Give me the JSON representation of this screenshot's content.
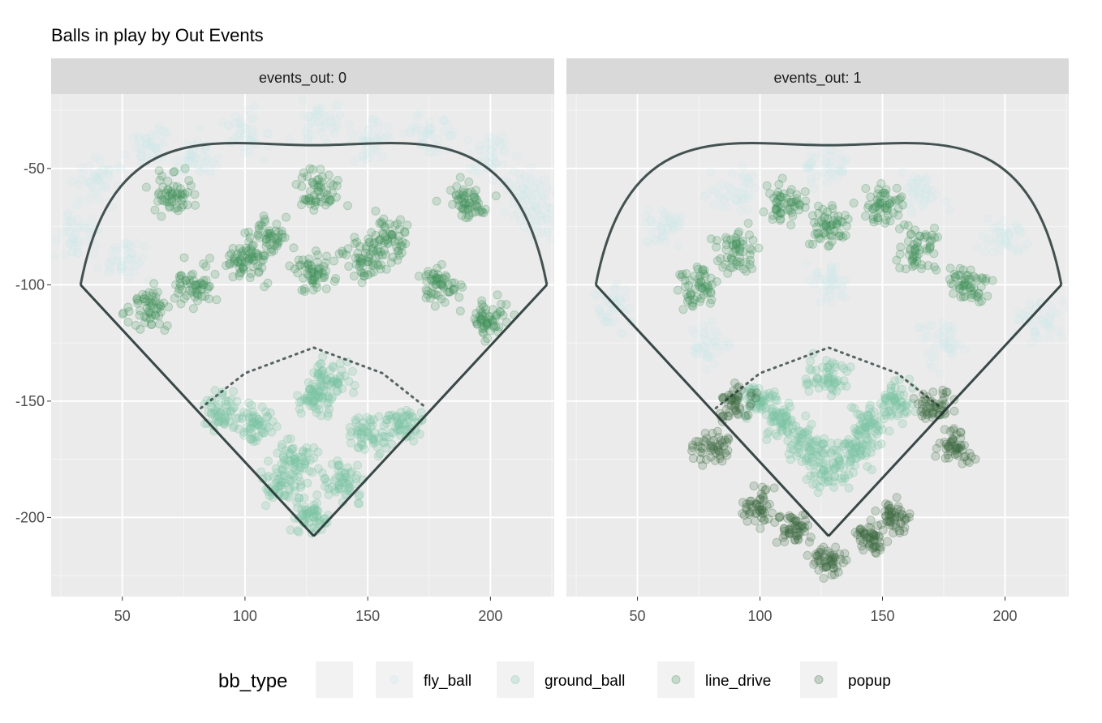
{
  "chart_data": {
    "type": "scatter",
    "title": "Balls in play by Out Events",
    "xlabel": "",
    "ylabel": "",
    "xlim": [
      21,
      226
    ],
    "ylim": [
      -234,
      -18
    ],
    "x_ticks": [
      50,
      100,
      150,
      200
    ],
    "y_ticks": [
      -50,
      -100,
      -150,
      -200
    ],
    "grid": true,
    "legend": {
      "title": "bb_type",
      "placement": "bottom",
      "entries": [
        "",
        "fly_ball",
        "ground_ball",
        "line_drive",
        "popup"
      ]
    },
    "colors": {
      "blank": "#d9d9d9",
      "fly_ball": "#cbe8ed",
      "ground_ball": "#7cc4a4",
      "line_drive": "#3f9259",
      "popup": "#3d6b3f",
      "field_line": "#1a2a2a",
      "panel_bg": "#ebebeb",
      "strip_bg": "#d9d9d9",
      "grid_major": "#ffffff"
    },
    "field": {
      "home": [
        128,
        -208
      ],
      "left_corner": [
        33,
        -100
      ],
      "right_corner": [
        223,
        -100
      ],
      "center_top": [
        128,
        -40
      ],
      "infield_arc": [
        [
          82,
          -153
        ],
        [
          100,
          -138
        ],
        [
          128,
          -127
        ],
        [
          156,
          -138
        ],
        [
          174,
          -153
        ]
      ]
    },
    "panels": [
      {
        "strip": "events_out: 0",
        "series": [
          {
            "name": "fly_ball",
            "points": [
              [
                40,
                -55
              ],
              [
                60,
                -40
              ],
              [
                100,
                -35
              ],
              [
                150,
                -38
              ],
              [
                200,
                -45
              ],
              [
                220,
                -70
              ],
              [
                30,
                -80
              ],
              [
                130,
                -30
              ],
              [
                175,
                -35
              ],
              [
                80,
                -45
              ],
              [
                215,
                -60
              ],
              [
                50,
                -90
              ]
            ]
          },
          {
            "name": "ground_ball",
            "points": [
              [
                128,
                -200
              ],
              [
                115,
                -185
              ],
              [
                140,
                -185
              ],
              [
                105,
                -160
              ],
              [
                150,
                -165
              ],
              [
                128,
                -150
              ],
              [
                90,
                -155
              ],
              [
                165,
                -160
              ],
              [
                120,
                -175
              ],
              [
                135,
                -140
              ]
            ]
          },
          {
            "name": "line_drive",
            "points": [
              [
                80,
                -100
              ],
              [
                100,
                -90
              ],
              [
                128,
                -95
              ],
              [
                150,
                -90
              ],
              [
                180,
                -100
              ],
              [
                60,
                -110
              ],
              [
                200,
                -115
              ],
              [
                110,
                -80
              ],
              [
                160,
                -80
              ],
              [
                70,
                -60
              ],
              [
                190,
                -65
              ],
              [
                130,
                -60
              ]
            ]
          }
        ]
      },
      {
        "strip": "events_out: 1",
        "series": [
          {
            "name": "fly_ball",
            "points": [
              [
                60,
                -75
              ],
              [
                90,
                -60
              ],
              [
                128,
                -50
              ],
              [
                165,
                -60
              ],
              [
                200,
                -80
              ],
              [
                40,
                -110
              ],
              [
                215,
                -115
              ],
              [
                128,
                -100
              ],
              [
                80,
                -125
              ],
              [
                175,
                -125
              ]
            ]
          },
          {
            "name": "ground_ball",
            "points": [
              [
                128,
                -180
              ],
              [
                110,
                -160
              ],
              [
                145,
                -160
              ],
              [
                100,
                -150
              ],
              [
                155,
                -150
              ],
              [
                128,
                -140
              ],
              [
                120,
                -170
              ],
              [
                138,
                -172
              ]
            ]
          },
          {
            "name": "line_drive",
            "points": [
              [
                90,
                -85
              ],
              [
                128,
                -75
              ],
              [
                165,
                -85
              ],
              [
                75,
                -100
              ],
              [
                185,
                -100
              ],
              [
                110,
                -65
              ],
              [
                150,
                -65
              ]
            ]
          },
          {
            "name": "popup",
            "points": [
              [
                80,
                -170
              ],
              [
                100,
                -195
              ],
              [
                128,
                -218
              ],
              [
                155,
                -200
              ],
              [
                180,
                -170
              ],
              [
                90,
                -150
              ],
              [
                170,
                -150
              ],
              [
                115,
                -205
              ],
              [
                145,
                -210
              ]
            ]
          }
        ]
      }
    ]
  }
}
